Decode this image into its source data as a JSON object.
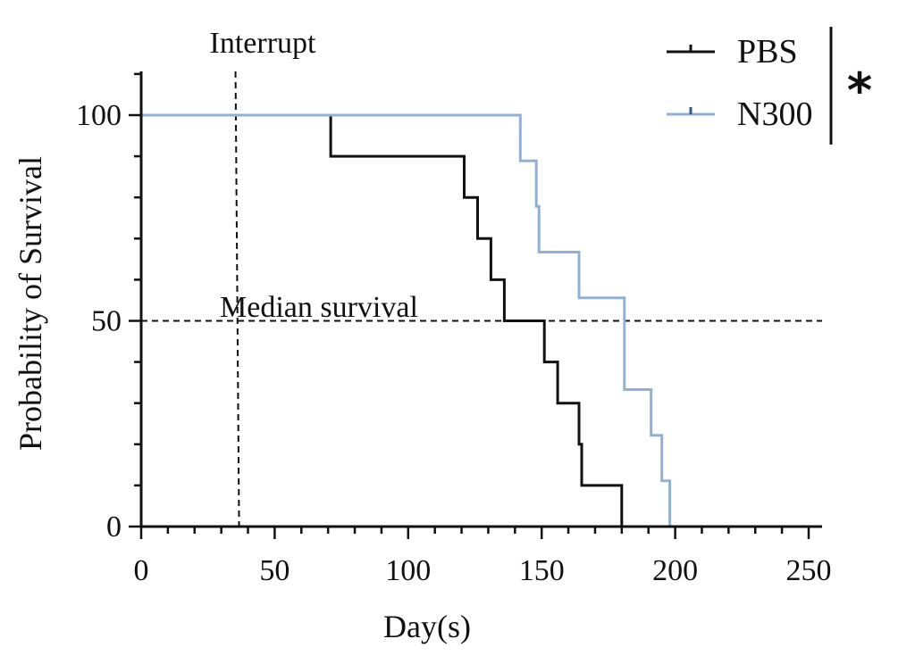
{
  "chart_data": {
    "type": "line",
    "subtype": "kaplan-meier-step",
    "xlabel": "Day(s)",
    "ylabel": "Probability of Survival",
    "xlim": [
      0,
      250
    ],
    "ylim": [
      0,
      100
    ],
    "x_ticks": [
      0,
      50,
      100,
      150,
      200,
      250
    ],
    "y_ticks": [
      0,
      50,
      100
    ],
    "grid": false,
    "legend_position": "top-right",
    "significance": "*",
    "series": [
      {
        "name": "PBS",
        "color": "#111111",
        "points": [
          [
            0,
            100
          ],
          [
            71,
            100
          ],
          [
            71,
            90
          ],
          [
            121,
            90
          ],
          [
            121,
            80
          ],
          [
            126,
            80
          ],
          [
            126,
            70
          ],
          [
            131,
            70
          ],
          [
            131,
            60
          ],
          [
            136,
            60
          ],
          [
            136,
            50
          ],
          [
            151,
            50
          ],
          [
            151,
            40
          ],
          [
            156,
            40
          ],
          [
            156,
            30
          ],
          [
            164,
            30
          ],
          [
            164,
            20
          ],
          [
            165,
            20
          ],
          [
            165,
            10
          ],
          [
            180,
            10
          ],
          [
            180,
            0
          ]
        ]
      },
      {
        "name": "N300",
        "color": "#8fb0d8",
        "points": [
          [
            0,
            100
          ],
          [
            142,
            100
          ],
          [
            142,
            88.9
          ],
          [
            148,
            88.9
          ],
          [
            148,
            77.8
          ],
          [
            149,
            77.8
          ],
          [
            149,
            66.7
          ],
          [
            164,
            66.7
          ],
          [
            164,
            55.6
          ],
          [
            181,
            55.6
          ],
          [
            181,
            33.3
          ],
          [
            191,
            33.3
          ],
          [
            191,
            22.2
          ],
          [
            195,
            22.2
          ],
          [
            195,
            11.1
          ],
          [
            198,
            11.1
          ],
          [
            198,
            0
          ]
        ]
      }
    ],
    "reference_lines": [
      {
        "orientation": "horizontal",
        "value": 50,
        "label": "Median survival"
      },
      {
        "orientation": "vertical",
        "value": 36,
        "label": "Interrupt"
      }
    ]
  }
}
